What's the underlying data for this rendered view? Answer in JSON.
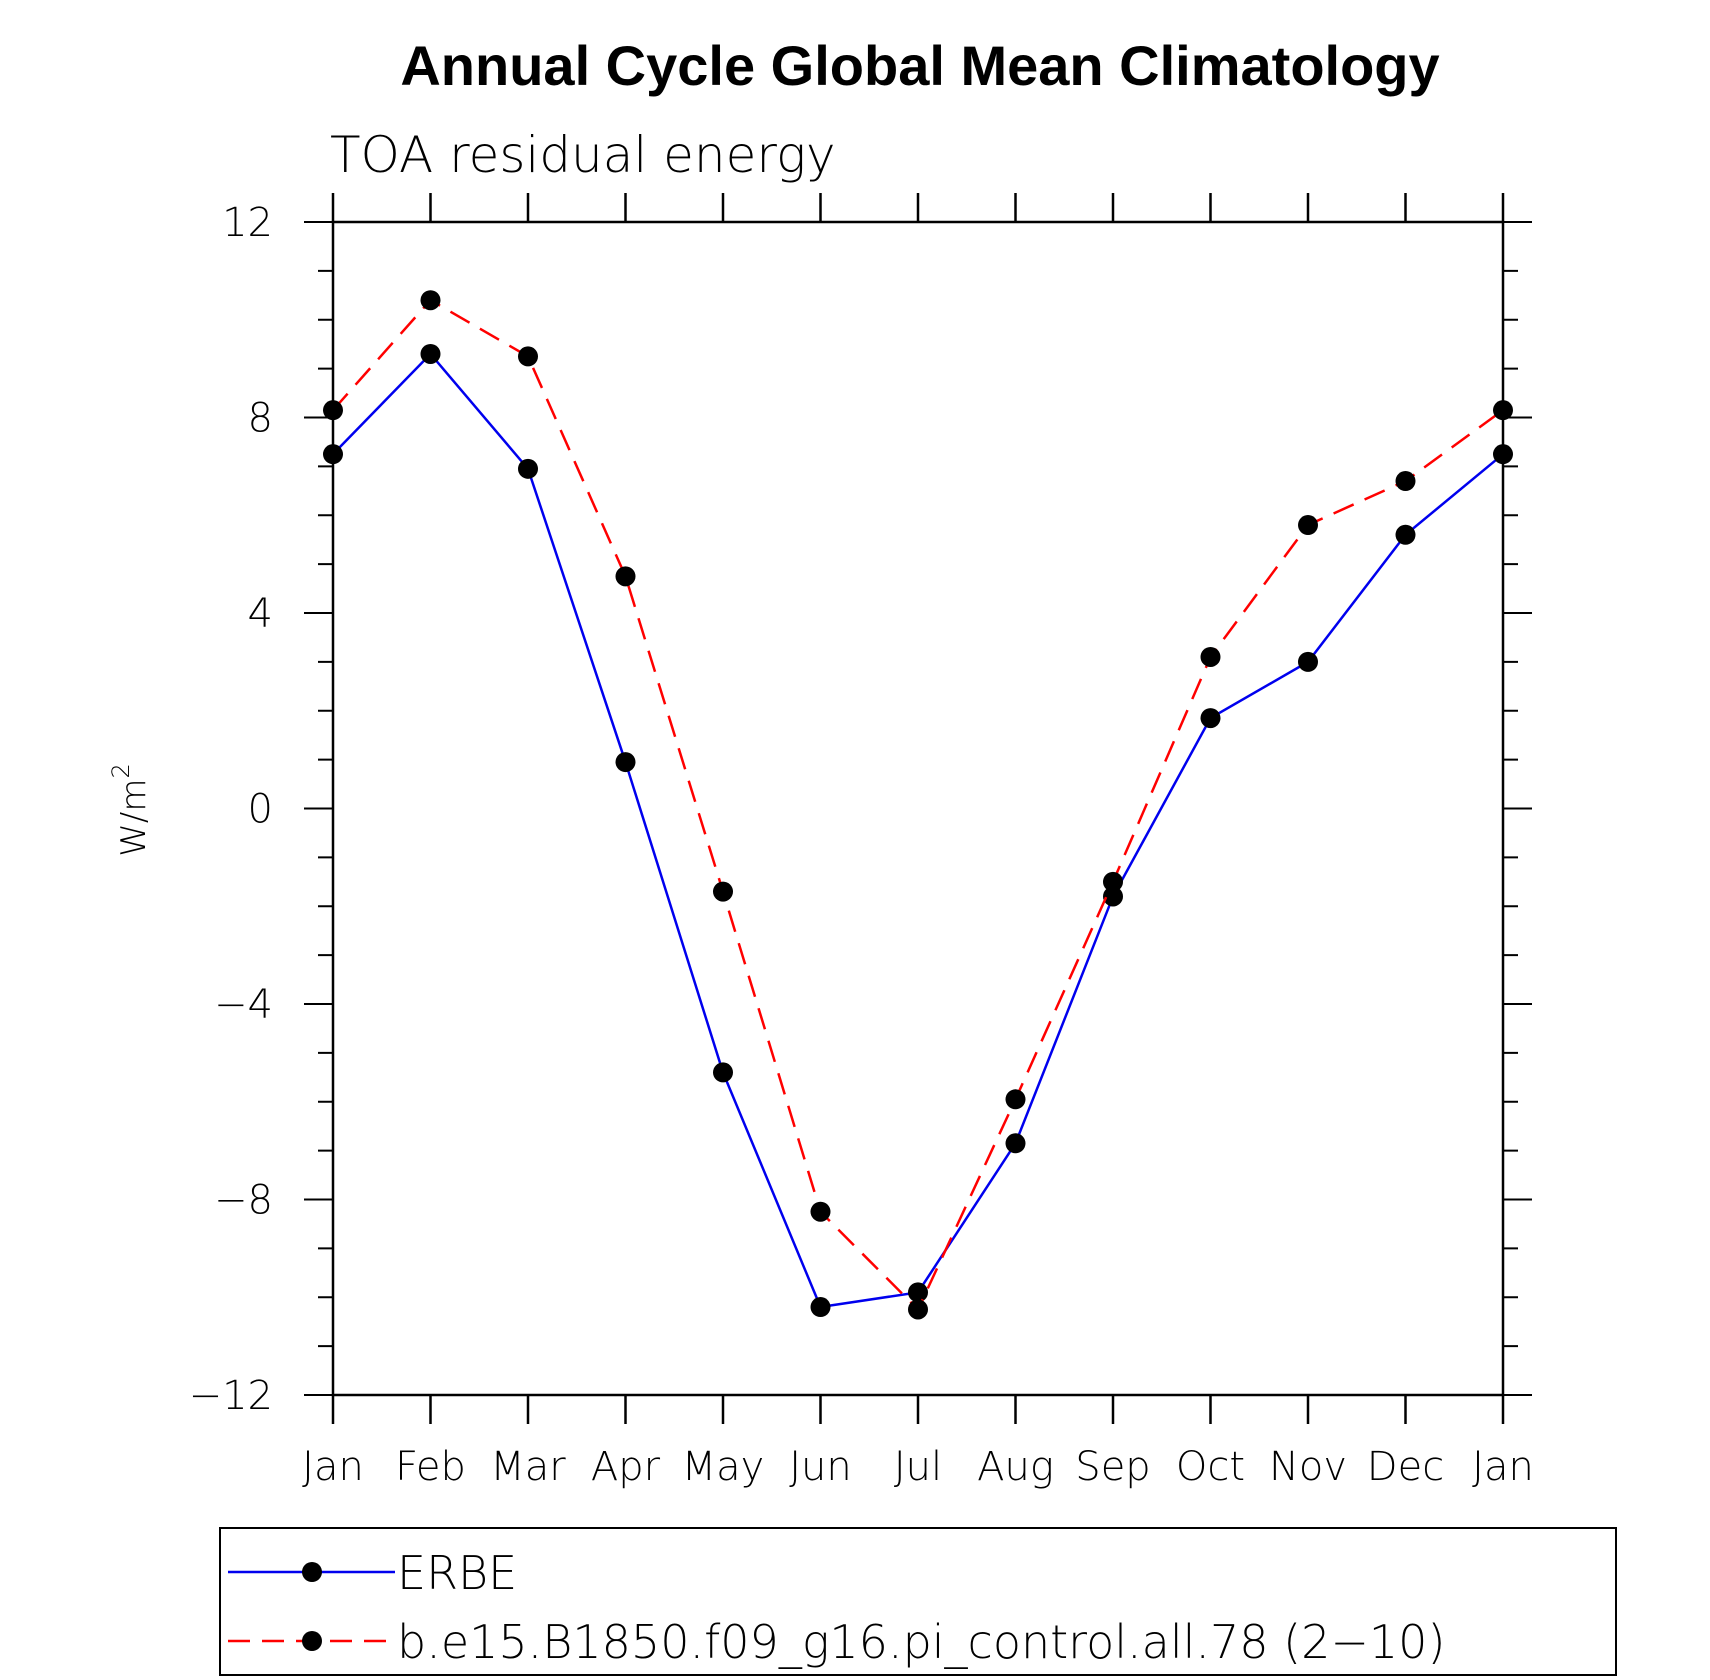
{
  "chart_data": {
    "type": "line",
    "title": "Annual Cycle Global Mean Climatology",
    "subtitle": "TOA residual energy",
    "ylabel": "W/m",
    "ylabel_superscript": "2",
    "xlabel": "",
    "categories": [
      "Jan",
      "Feb",
      "Mar",
      "Apr",
      "May",
      "Jun",
      "Jul",
      "Aug",
      "Sep",
      "Oct",
      "Nov",
      "Dec",
      "Jan"
    ],
    "ylim": [
      -12,
      12
    ],
    "yticks": [
      -12,
      -8,
      -4,
      0,
      4,
      8,
      12
    ],
    "ytick_labels": [
      "−12",
      "−8",
      "−4",
      "0",
      "4",
      "8",
      "12"
    ],
    "series": [
      {
        "name": "ERBE",
        "color": "#0000ee",
        "dash": "solid",
        "values": [
          7.25,
          9.3,
          6.95,
          0.95,
          -5.4,
          -10.2,
          -9.9,
          -6.85,
          -1.8,
          1.85,
          3.0,
          5.6,
          7.25
        ]
      },
      {
        "name": "b.e15.B1850.f09_g16.pi_control.all.78 (2−10)",
        "color": "#ff0000",
        "dash": "dashed",
        "values": [
          8.15,
          10.4,
          9.25,
          4.75,
          -1.7,
          -8.25,
          -10.25,
          -5.95,
          -1.5,
          3.1,
          5.8,
          6.7,
          8.15
        ]
      }
    ],
    "grid": false,
    "legend_position": "bottom"
  }
}
